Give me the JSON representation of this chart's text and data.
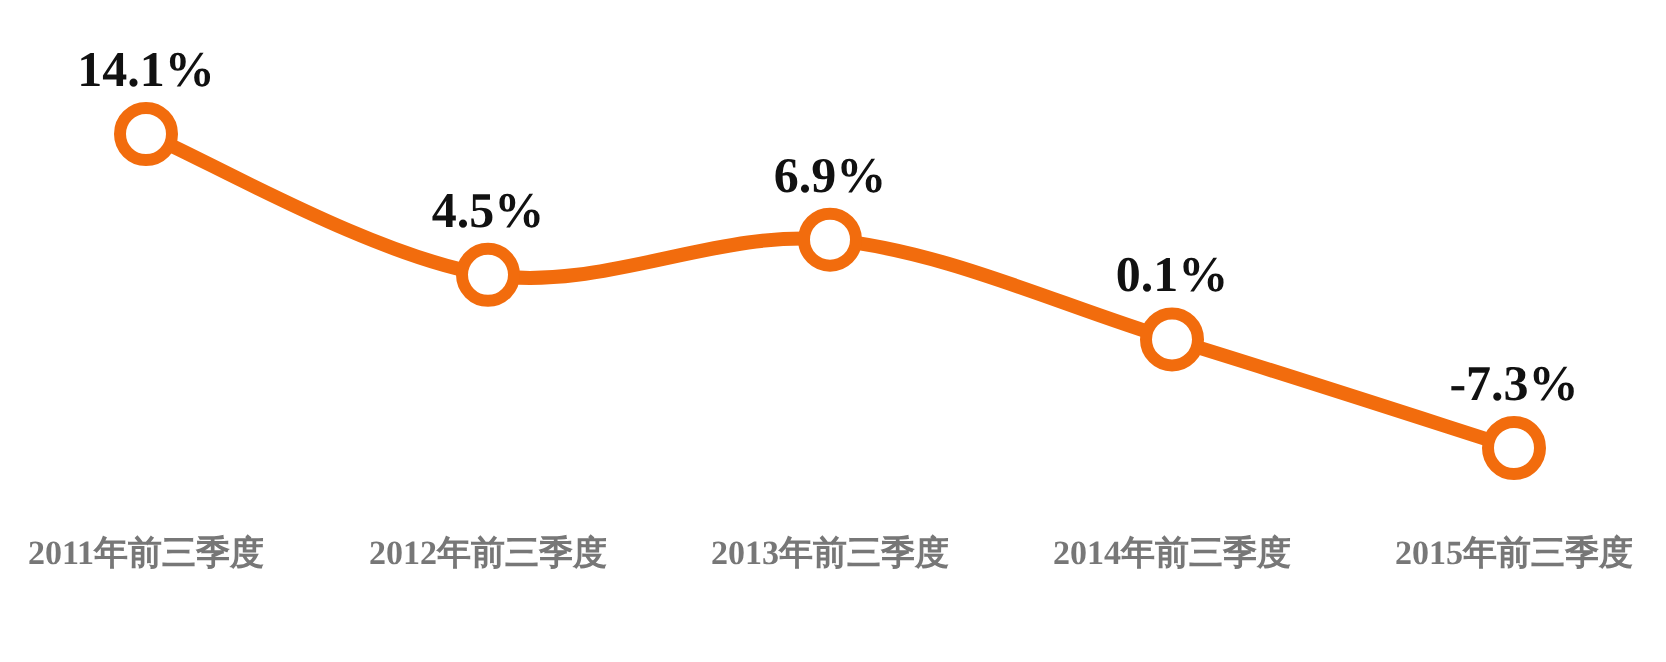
{
  "chart_data": {
    "type": "line",
    "categories": [
      "2011年前三季度",
      "2012年前三季度",
      "2013年前三季度",
      "2014年前三季度",
      "2015年前三季度"
    ],
    "series": [
      {
        "color": "#f26c0d",
        "values": [
          14.1,
          4.5,
          6.9,
          0.1,
          -7.3
        ],
        "value_labels": [
          "14.1%",
          "4.5%",
          "6.9%",
          "0.1%",
          "-7.3%"
        ]
      }
    ],
    "marker": "circle",
    "line_style": "solid"
  }
}
